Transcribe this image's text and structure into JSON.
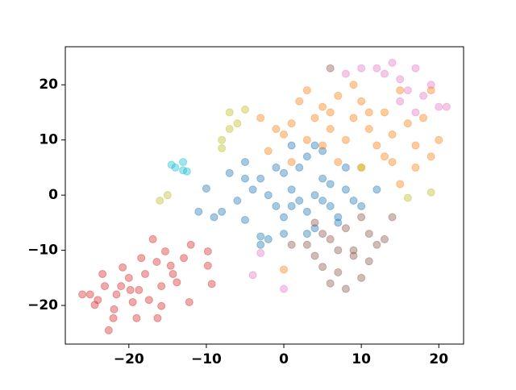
{
  "chart_data": {
    "type": "scatter",
    "xlim": [
      -28.2,
      23.2
    ],
    "ylim": [
      -27,
      26.9
    ],
    "xticks": [
      {
        "value": -20,
        "label": "−20"
      },
      {
        "value": -10,
        "label": "−10"
      },
      0,
      10,
      20
    ],
    "yticks": [
      {
        "value": -20,
        "label": "−20"
      },
      {
        "value": -10,
        "label": "−10"
      },
      0,
      10,
      20
    ],
    "opacity": 0.4,
    "series": [
      {
        "color": "#d62728",
        "x": [
          -26,
          -25,
          -24,
          -23.4,
          -22.6,
          -22,
          -21,
          -20.8,
          -20,
          -19.5,
          -18.7,
          -17.9,
          -16.9,
          -16.4,
          -15.8,
          -15.3,
          -14.6,
          -13.8,
          -12.9,
          -12,
          -12.2,
          -9.8,
          -9.3,
          -9.8,
          -21.6,
          -19,
          -17.4,
          -21.9,
          -24.4,
          -15.8,
          -18.4,
          -23.1,
          -19.8,
          -14.3,
          -16.3
        ],
        "y": [
          -18,
          -18,
          -19,
          -14.3,
          -24.5,
          -22.3,
          -16.5,
          -13.1,
          -15,
          -19.4,
          -17.2,
          -14.3,
          -8,
          -12.1,
          -20.1,
          -10.2,
          -12.8,
          -15.8,
          -11.4,
          -9,
          -19.4,
          -10.2,
          -16.1,
          -12.8,
          -18,
          -22.3,
          -19,
          -20.7,
          -19.9,
          -16.5,
          -11.4,
          -16.5,
          -17.2,
          -14.3,
          -22.3
        ]
      },
      {
        "color": "#1f77b4",
        "x": [
          -10,
          -9,
          -7,
          -5,
          -5,
          -3,
          -3,
          -2,
          -1,
          0,
          0,
          1,
          1,
          2,
          2,
          3,
          3,
          4,
          4,
          5,
          5,
          6,
          6,
          7,
          8,
          8,
          9,
          -6,
          -4,
          -8,
          -1,
          0,
          3,
          -2,
          7,
          -11,
          1,
          5,
          -3,
          4,
          -5,
          10,
          12
        ],
        "y": [
          1.2,
          -4,
          4,
          -4.5,
          6,
          3,
          -7.5,
          0,
          -2,
          4,
          -4,
          1,
          9,
          -1,
          5,
          -3,
          7,
          0,
          -6,
          3,
          8,
          -2,
          2,
          -4,
          1,
          5,
          -1,
          -1,
          1,
          -3,
          5,
          -7,
          -7,
          -8,
          -5,
          -3,
          -2,
          -1,
          -9,
          9,
          3,
          -2,
          1
        ]
      },
      {
        "color": "#ff7f0e",
        "x": [
          -1,
          0,
          1,
          2,
          3,
          4,
          5,
          6,
          7,
          8,
          9,
          10,
          11,
          12,
          13,
          14,
          15,
          16,
          17,
          18,
          19,
          20,
          5,
          7,
          10,
          13,
          15,
          17,
          19,
          9,
          3,
          11,
          -2,
          1,
          6,
          14,
          0,
          -3
        ],
        "y": [
          12,
          11,
          13,
          17,
          19,
          14,
          16,
          12,
          18,
          10,
          14,
          17,
          12,
          9,
          15,
          11,
          19,
          13,
          9,
          14,
          19,
          10,
          9,
          6,
          5,
          7,
          2,
          5,
          7,
          20,
          10,
          15,
          8,
          6,
          15,
          6,
          -13.5,
          14
        ]
      },
      {
        "color": "#8c564b",
        "x": [
          3,
          4,
          5,
          6,
          7,
          8,
          9,
          10,
          11,
          12,
          13,
          8,
          6,
          9,
          4,
          11,
          5,
          7,
          1,
          6,
          14,
          10
        ],
        "y": [
          -9,
          -11,
          -13,
          -8,
          -14,
          -6,
          -10,
          -4,
          -12,
          -9,
          -8,
          -17,
          -16,
          -11,
          -5,
          -7,
          -7,
          -10,
          -9,
          23,
          -4,
          -15
        ]
      },
      {
        "color": "#e377c2",
        "x": [
          13,
          14,
          15,
          16,
          17,
          18,
          19,
          20,
          21,
          15,
          12,
          10,
          17,
          -4,
          0,
          -3,
          8
        ],
        "y": [
          22,
          24,
          21,
          19,
          23,
          18,
          20,
          16,
          16,
          17,
          23,
          23,
          15,
          -14.5,
          -17,
          -10.5,
          22
        ]
      },
      {
        "color": "#bcbd22",
        "x": [
          -7,
          -6,
          -7,
          -8,
          -8,
          -15,
          -16,
          10,
          16,
          19,
          -5
        ],
        "y": [
          15,
          13,
          12,
          10,
          8.5,
          0,
          -1,
          5,
          -0.5,
          0.5,
          15.5
        ]
      },
      {
        "color": "#17becf",
        "x": [
          -14,
          -13,
          -13,
          -14.5,
          -12.5
        ],
        "y": [
          5,
          6,
          4.5,
          5.5,
          4.3
        ]
      }
    ]
  }
}
